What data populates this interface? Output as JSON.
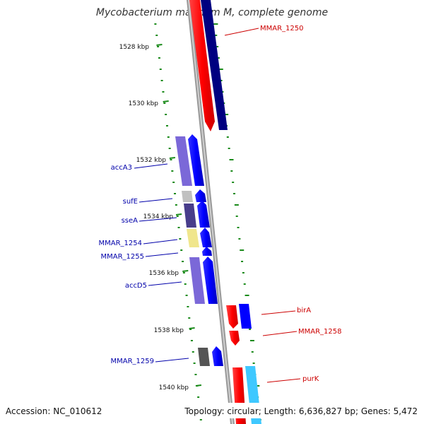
{
  "title": "Mycobacterium marinum M, complete genome",
  "accession": "Accession: NC_010612",
  "summary": "Topology: circular; Length: 6,636,827 bp; Genes: 5,472",
  "colors": {
    "backbone": "#8c8c8c",
    "tick": "#1a8a1a",
    "forward_label": "#cc0000",
    "reverse_label": "#0000aa"
  },
  "ticks": [
    "1528 kbp",
    "1530 kbp",
    "1532 kbp",
    "1534 kbp",
    "1536 kbp",
    "1538 kbp",
    "1540 kbp"
  ],
  "genes": [
    {
      "name": "MMAR_1250",
      "strand": "forward",
      "cog_color": "#000080"
    },
    {
      "name": "accA3",
      "strand": "reverse",
      "cog_color": "#7b68d8"
    },
    {
      "name": "sufE",
      "strand": "reverse",
      "cog_color": "#c0c0c0"
    },
    {
      "name": "sseA",
      "strand": "reverse",
      "cog_color": "#483d8b"
    },
    {
      "name": "MMAR_1254",
      "strand": "reverse",
      "cog_color": "#f0e68c"
    },
    {
      "name": "MMAR_1255",
      "strand": "reverse",
      "cog_color": "#ffffff"
    },
    {
      "name": "accD5",
      "strand": "reverse",
      "cog_color": "#7b68d8"
    },
    {
      "name": "birA",
      "strand": "forward",
      "cog_color": "#0000ff"
    },
    {
      "name": "MMAR_1258",
      "strand": "forward",
      "cog_color": "#ffffff"
    },
    {
      "name": "MMAR_1259",
      "strand": "reverse",
      "cog_color": "#555555"
    },
    {
      "name": "purK",
      "strand": "forward",
      "cog_color": "#3fc8ff"
    }
  ]
}
